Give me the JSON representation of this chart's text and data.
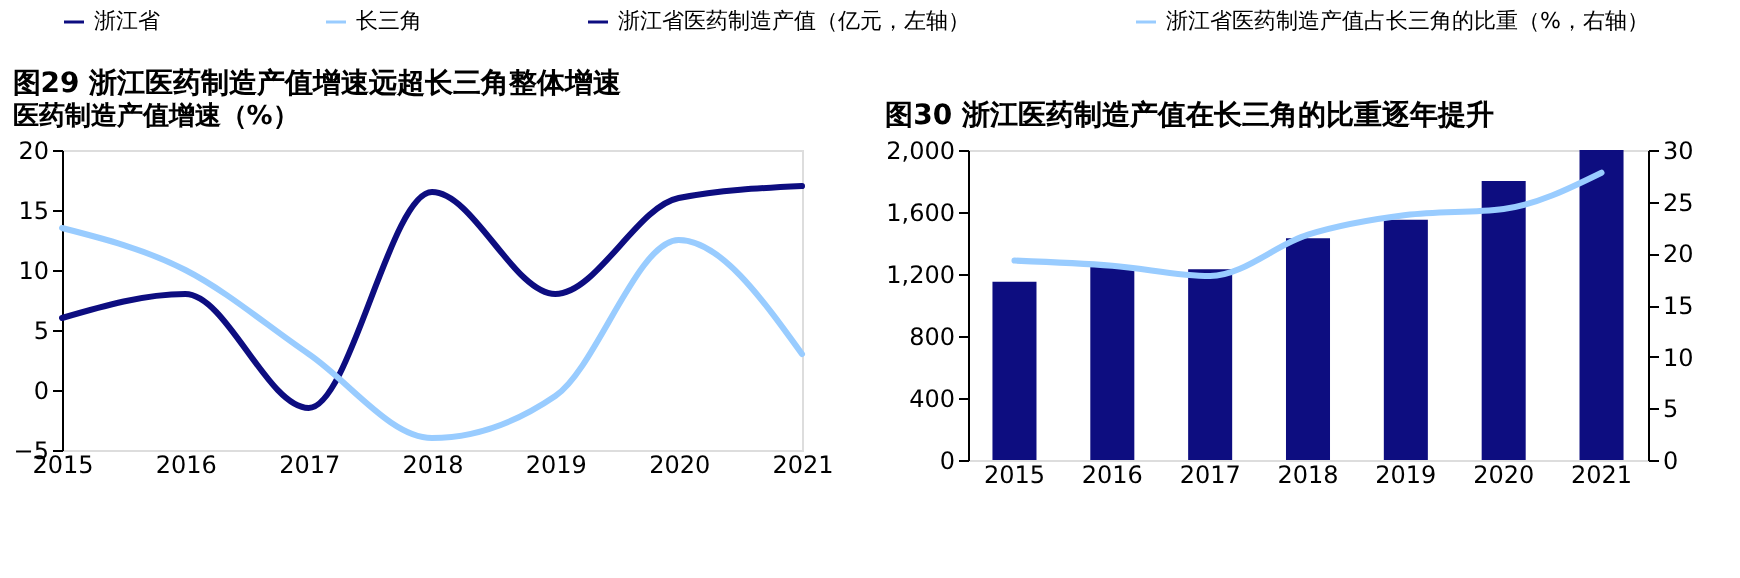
{
  "chart_data": [
    {
      "type": "line",
      "title": "图29 浙江医药制造产值增速远超长三角整体增速",
      "subtitle": "医药制造产值增速（%）",
      "categories": [
        "2015",
        "2016",
        "2017",
        "2018",
        "2019",
        "2020",
        "2021"
      ],
      "series": [
        {
          "name": "浙江省",
          "color": "#0d0d80",
          "values": [
            6,
            8,
            -1.5,
            16.5,
            8,
            16,
            17
          ]
        },
        {
          "name": "长三角",
          "color": "#99ccff",
          "values": [
            13.5,
            10,
            3,
            -4,
            -0.5,
            12.5,
            3
          ]
        }
      ],
      "ylim": [
        -5,
        20
      ],
      "yticks": [
        -5,
        0,
        5,
        10,
        15,
        20
      ],
      "legend": "top",
      "grid": false
    },
    {
      "type": "bar",
      "title": "图30 浙江医药制造产值在长三角的比重逐年提升",
      "categories": [
        "2015",
        "2016",
        "2017",
        "2018",
        "2019",
        "2020",
        "2021"
      ],
      "series": [
        {
          "name": "浙江省医药制造产值（亿元，左轴）",
          "color": "#0d0d80",
          "type": "bar",
          "values": [
            1150,
            1250,
            1230,
            1430,
            1550,
            1800,
            2000
          ]
        },
        {
          "name": "浙江省医药制造产值占长三角的比重（%，右轴）",
          "color": "#99ccff",
          "type": "line",
          "axis": "y2",
          "values": [
            19.3,
            18.8,
            17.8,
            21.8,
            23.7,
            24.3,
            27.8
          ]
        }
      ],
      "ylim": [
        0,
        2000
      ],
      "yticks": [
        0,
        400,
        800,
        {
          "value": 1200,
          "label": "1,200"
        },
        {
          "value": 1600,
          "label": "1,600"
        },
        {
          "value": 2000,
          "label": "2,000"
        }
      ],
      "y2lim": [
        0,
        30
      ],
      "y2ticks": [
        0,
        5,
        10,
        15,
        20,
        25,
        30
      ],
      "legend": "top",
      "grid": false
    }
  ]
}
